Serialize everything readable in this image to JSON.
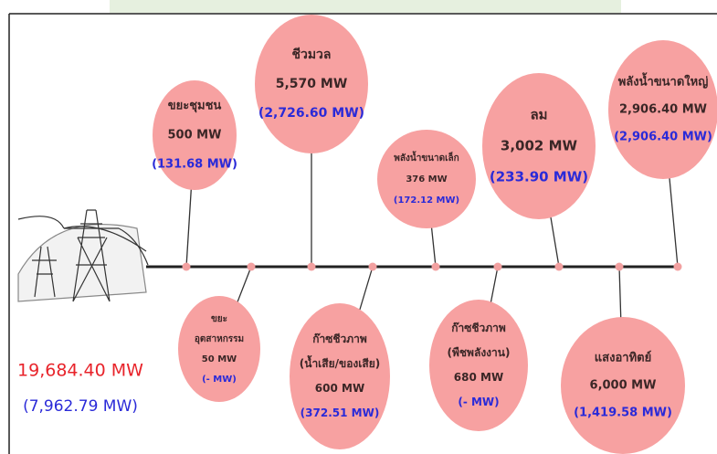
{
  "total": {
    "capacity": "19,684.40 MW",
    "actual": "(7,962.79 MW)"
  },
  "nodes": [
    {
      "name": [
        "ขยะชุมชน"
      ],
      "capacity": "500 MW",
      "actual": "(131.68 MW)"
    },
    {
      "name": [
        "ชีวมวล"
      ],
      "capacity": "5,570 MW",
      "actual": "(2,726.60 MW)"
    },
    {
      "name": [
        "พลังน้ำขนาดเล็ก"
      ],
      "capacity": "376 MW",
      "actual": "(172.12 MW)"
    },
    {
      "name": [
        "ลม"
      ],
      "capacity": "3,002 MW",
      "actual": "(233.90 MW)"
    },
    {
      "name": [
        "พลังน้ำขนาดใหญ่"
      ],
      "capacity": "2,906.40 MW",
      "actual": "(2,906.40 MW)"
    },
    {
      "name": [
        "ขยะ",
        "อุตสาหกรรม"
      ],
      "capacity": "50 MW",
      "actual": "(- MW)"
    },
    {
      "name": [
        "ก๊าซชีวภาพ",
        "(น้ำเสีย/ของเสีย)"
      ],
      "capacity": "600 MW",
      "actual": "(372.51 MW)"
    },
    {
      "name": [
        "ก๊าซชีวภาพ",
        "(พืชพลังงาน)"
      ],
      "capacity": "680 MW",
      "actual": "(- MW)"
    },
    {
      "name": [
        "แสงอาทิตย์"
      ],
      "capacity": "6,000 MW",
      "actual": "(1,419.58 MW)"
    }
  ]
}
